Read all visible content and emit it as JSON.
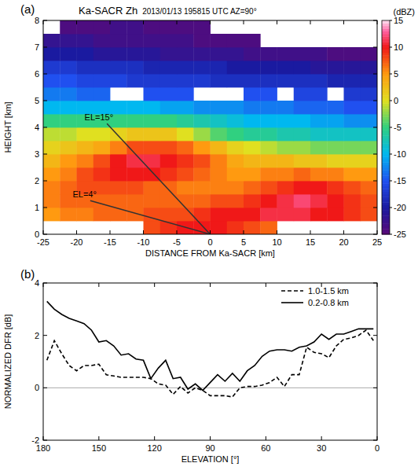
{
  "chart_data": [
    {
      "type": "heatmap",
      "panel_label": "(a)",
      "title": "Ka-SACR Zh",
      "subtitle": "2013/01/13 195815 UTC AZ=90°",
      "x_label": "DISTANCE FROM Ka-SACR [km]",
      "y_label": "HEIGHT [km]",
      "xlim": [
        -25,
        25
      ],
      "xticks": [
        -25,
        -20,
        -15,
        -10,
        -5,
        0,
        5,
        10,
        15,
        20,
        25
      ],
      "ylim": [
        0,
        8
      ],
      "yticks": [
        0,
        1,
        2,
        3,
        4,
        5,
        6,
        7,
        8
      ],
      "x": [
        -23.75,
        -21.25,
        -18.75,
        -16.25,
        -13.75,
        -11.25,
        -8.75,
        -6.25,
        -3.75,
        -1.25,
        1.25,
        3.75,
        6.25,
        8.75,
        11.25,
        13.75,
        16.25,
        18.75,
        21.25,
        23.75
      ],
      "y": [
        0.25,
        0.75,
        1.25,
        1.75,
        2.25,
        2.75,
        3.25,
        3.75,
        4.25,
        4.75,
        5.25,
        5.75,
        6.25,
        6.75,
        7.25,
        7.75
      ],
      "z": [
        [
          null,
          null,
          null,
          null,
          null,
          null,
          8,
          9,
          10,
          10,
          10,
          9,
          8,
          7,
          null,
          null,
          null,
          null,
          null,
          null
        ],
        [
          5,
          6,
          6,
          7,
          7,
          7,
          8,
          8,
          8,
          9,
          10,
          10,
          10,
          11,
          11,
          11,
          10,
          10,
          9,
          8
        ],
        [
          6,
          7,
          7,
          7,
          7,
          7,
          7,
          7,
          7,
          7,
          8,
          8,
          9,
          10,
          11,
          12,
          11,
          10,
          9,
          8
        ],
        [
          6,
          7,
          8,
          8,
          8,
          8,
          7,
          7,
          6,
          6,
          6,
          6,
          7,
          8,
          9,
          10,
          10,
          9,
          8,
          7
        ],
        [
          5,
          6,
          8,
          9,
          10,
          10,
          10,
          9,
          8,
          7,
          6,
          5,
          5,
          6,
          6,
          7,
          6,
          6,
          5,
          5
        ],
        [
          3,
          5,
          6,
          8,
          10,
          11,
          11,
          10,
          9,
          8,
          6,
          4,
          3,
          3,
          3,
          2,
          2,
          1,
          1,
          1
        ],
        [
          1,
          2,
          3,
          4,
          6,
          8,
          8,
          8,
          7,
          5,
          3,
          1,
          0,
          -1,
          -2,
          -2,
          -3,
          -3,
          -3,
          -3
        ],
        [
          -1,
          -1,
          0,
          0,
          1,
          2,
          2,
          2,
          0,
          -2,
          -4,
          -5,
          -6,
          -6,
          -7,
          -7,
          -8,
          -8,
          -8,
          -8
        ],
        [
          -5,
          -5,
          -5,
          -5,
          -5,
          -5,
          -5,
          -5,
          -6,
          -7,
          -8,
          -9,
          -10,
          -10,
          -10,
          -10,
          -11,
          -11,
          -12,
          -12
        ],
        [
          -10,
          -10,
          -10,
          -10,
          -10,
          -10,
          -10,
          -11,
          -11,
          -12,
          -12,
          -12,
          -13,
          -13,
          -13,
          -14,
          -14,
          -14,
          -15,
          -15
        ],
        [
          -13,
          -13,
          -14,
          -14,
          null,
          null,
          -15,
          -15,
          -15,
          null,
          null,
          null,
          -15,
          -15,
          null,
          -16,
          -16,
          null,
          -17,
          -17
        ],
        [
          -15,
          -15,
          -16,
          -16,
          -16,
          -17,
          -17,
          -17,
          -17,
          -17,
          -18,
          -18,
          -18,
          -18,
          -18,
          -18,
          -18,
          -19,
          -19,
          -19
        ],
        [
          -17,
          -17,
          -18,
          -18,
          -18,
          -18,
          -19,
          -19,
          -19,
          -19,
          -19,
          -20,
          -20,
          -20,
          -20,
          -20,
          -21,
          -21,
          -21,
          -21
        ],
        [
          -20,
          -20,
          -20,
          -21,
          -21,
          -21,
          -21,
          -22,
          -22,
          -22,
          -22,
          -22,
          -23,
          -23,
          -23,
          -23,
          -23,
          -24,
          -24,
          -24
        ],
        [
          -22,
          -22,
          -22,
          -23,
          -23,
          -23,
          -23,
          -23,
          -23,
          -24,
          -24,
          -24,
          -24,
          null,
          null,
          null,
          null,
          null,
          null,
          null
        ],
        [
          null,
          -24,
          -24,
          -24,
          -23,
          -23,
          -24,
          -24,
          -24,
          -24,
          null,
          null,
          null,
          null,
          null,
          null,
          null,
          null,
          null,
          null
        ]
      ],
      "colorbar": {
        "label": "(dBZ)",
        "range": [
          -25,
          15
        ],
        "ticks": [
          -25,
          -20,
          -15,
          -10,
          -5,
          0,
          5,
          10,
          15
        ]
      },
      "annotations": [
        {
          "text": "EL=15°",
          "elevation": 15,
          "range": 16
        },
        {
          "text": "EL=4°",
          "elevation": 4,
          "range": 18
        }
      ]
    },
    {
      "type": "line",
      "panel_label": "(b)",
      "x_label": "ELEVATION [°]",
      "y_label": "NORMALIZED DFR [dB]",
      "xlim": [
        180,
        0
      ],
      "xticks": [
        180,
        150,
        120,
        90,
        60,
        30,
        0
      ],
      "ylim": [
        -2,
        4
      ],
      "yticks": [
        -2,
        0,
        2,
        4
      ],
      "reference_line": 0,
      "legend": "upper right",
      "x": [
        178,
        174,
        170,
        166,
        162,
        158,
        154,
        150,
        146,
        142,
        138,
        134,
        130,
        126,
        122,
        118,
        114,
        110,
        106,
        102,
        98,
        94,
        90,
        86,
        82,
        78,
        74,
        70,
        66,
        62,
        58,
        54,
        50,
        46,
        42,
        38,
        34,
        30,
        26,
        22,
        18,
        14,
        10,
        6,
        2
      ],
      "series": [
        {
          "name": "1.0-1.5 km",
          "color": "#000000",
          "line_style": "dashed",
          "values": [
            1.05,
            1.8,
            1.3,
            0.85,
            0.65,
            0.85,
            0.85,
            0.9,
            0.5,
            0.45,
            0.4,
            0.4,
            0.4,
            0.4,
            0.35,
            0.15,
            0.1,
            -0.25,
            0.05,
            -0.2,
            0,
            -0.1,
            -0.3,
            -0.3,
            -0.3,
            -0.35,
            0,
            0.05,
            0.05,
            0.1,
            0.2,
            0.4,
            0.05,
            0.5,
            0.5,
            1.55,
            1.35,
            1.3,
            1.15,
            1.6,
            1.85,
            1.9,
            2.0,
            2.2,
            1.8
          ]
        },
        {
          "name": "0.2-0.8 km",
          "color": "#000000",
          "line_style": "solid",
          "values": [
            3.3,
            3.0,
            2.8,
            2.65,
            2.55,
            2.45,
            2.2,
            1.75,
            1.8,
            1.6,
            1.25,
            1.3,
            1.1,
            1.05,
            0.35,
            0.75,
            1.05,
            0.35,
            0.4,
            -0.05,
            0.15,
            -0.1,
            0.2,
            0.5,
            0.25,
            0.55,
            0.25,
            0.65,
            0.85,
            1.2,
            1.4,
            1.45,
            1.45,
            1.4,
            1.55,
            1.6,
            1.75,
            2.05,
            1.85,
            2.05,
            2.05,
            2.15,
            2.25,
            2.25,
            2.25
          ]
        }
      ]
    }
  ]
}
